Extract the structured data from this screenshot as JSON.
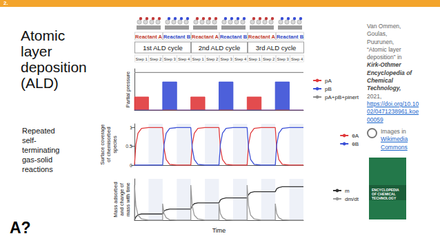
{
  "slide_number": "2.",
  "title_lines": [
    "Atomic",
    "layer",
    "deposition",
    "(ALD)"
  ],
  "subtitle_lines": [
    "Repeated",
    "self-",
    "terminating",
    "gas-solid",
    "reactions"
  ],
  "logo": "A?",
  "citation": [
    {
      "text": "Van Ommen,",
      "style": "plain"
    },
    {
      "text": "Goulas,",
      "style": "plain"
    },
    {
      "text": "Puurunen,",
      "style": "plain"
    },
    {
      "text": "“Atomic layer",
      "style": "plain"
    },
    {
      "text": "deposition” in",
      "style": "plain"
    },
    {
      "text": "Kirk-Othmer",
      "style": "italic"
    },
    {
      "text": "Encyclopedia of",
      "style": "italic"
    },
    {
      "text": "Chemical",
      "style": "italic"
    },
    {
      "text": "Technology,",
      "style": "italic"
    },
    {
      "text": "2021,",
      "style": "plain"
    },
    {
      "text": "https://doi.org/10.10",
      "style": "link"
    },
    {
      "text": "02/0471238961.koe",
      "style": "link"
    },
    {
      "text": "00059",
      "style": "link"
    }
  ],
  "images_credit": [
    {
      "text": "Images in",
      "style": "plain"
    },
    {
      "text": "Wikimedia",
      "style": "link"
    },
    {
      "text": "Commons",
      "style": "link"
    }
  ],
  "book_cover": "ENCYCLOPEDIA OF CHEMICAL TECHNOLOGY",
  "header": {
    "reactants": [
      "Reactant A",
      "Reactant B",
      "Reactant A",
      "Reactant B",
      "Reactant A",
      "Reactant B"
    ],
    "cycles": [
      "1st ALD cycle",
      "2nd ALD cycle",
      "3rd ALD cycle"
    ],
    "steps": [
      "Step 1",
      "Step 2",
      "Step 3",
      "Step 4",
      "Step 1",
      "Step 2",
      "Step 3",
      "Step 4",
      "Step 1",
      "Step 2",
      "Step 3",
      "Step 4"
    ]
  },
  "chart_data": [
    {
      "type": "line",
      "y_label": [
        "Partial pressure"
      ],
      "xlim": [
        0,
        12
      ],
      "ylim": [
        0,
        1.1
      ],
      "tick_labels": false,
      "grid": false,
      "legend": "right",
      "series": [
        {
          "name": "pA",
          "color": "#e0393b",
          "type": "area",
          "x": [
            0,
            0,
            1,
            1,
            4,
            4,
            5,
            5,
            8,
            8,
            9,
            9,
            12
          ],
          "values": [
            0,
            0.35,
            0.35,
            0,
            0,
            0.35,
            0.35,
            0,
            0,
            0.35,
            0.35,
            0,
            0
          ]
        },
        {
          "name": "pB",
          "color": "#3a4fd6",
          "type": "area",
          "x": [
            0,
            2,
            2,
            3,
            3,
            6,
            6,
            7,
            7,
            10,
            10,
            11,
            11,
            12
          ],
          "values": [
            0,
            0,
            0.75,
            0.75,
            0,
            0,
            0.75,
            0.75,
            0,
            0,
            0.75,
            0.75,
            0,
            0
          ]
        },
        {
          "name": "pA+pB+pinert",
          "color": "#8c8c8c",
          "type": "line",
          "x": [
            0,
            12
          ],
          "values": [
            1,
            1
          ]
        }
      ]
    },
    {
      "type": "line",
      "y_label": [
        "Surface coverage",
        "of chemisorbed",
        "species"
      ],
      "xlim": [
        0,
        12
      ],
      "ylim": [
        0,
        1.1
      ],
      "yticks": [
        0,
        0.5,
        1
      ],
      "tick_labels": "y",
      "grid": false,
      "legend": "right",
      "x": [
        0,
        0.1,
        0.25,
        0.5,
        1,
        2,
        2.1,
        2.25,
        2.5,
        3,
        4,
        4.1,
        4.25,
        4.5,
        5,
        6,
        6.1,
        6.25,
        6.5,
        7,
        8,
        8.1,
        8.25,
        8.5,
        9,
        10,
        10.1,
        10.25,
        10.5,
        11,
        12
      ],
      "series": [
        {
          "name": "θA",
          "color": "#e0393b",
          "values": [
            0,
            0.55,
            0.85,
            0.98,
            1,
            1,
            0.45,
            0.15,
            0.02,
            0,
            0,
            0.55,
            0.85,
            0.98,
            1,
            1,
            0.45,
            0.15,
            0.02,
            0,
            0,
            0.55,
            0.85,
            0.98,
            1,
            1,
            0.45,
            0.15,
            0.02,
            0,
            0
          ]
        },
        {
          "name": "θB",
          "color": "#3a4fd6",
          "values": [
            0,
            0,
            0,
            0,
            0,
            0,
            0.55,
            0.85,
            0.98,
            1,
            1,
            0.45,
            0.15,
            0.02,
            0,
            0,
            0.55,
            0.85,
            0.98,
            1,
            1,
            0.45,
            0.15,
            0.02,
            0,
            0,
            0.55,
            0.85,
            0.98,
            1,
            1
          ]
        }
      ]
    },
    {
      "type": "line",
      "x_label": "Time",
      "y_label": [
        "Mass adsorbed",
        "and change of",
        "mass with time"
      ],
      "xlim": [
        0,
        12
      ],
      "ylim": [
        0,
        1
      ],
      "tick_labels": false,
      "grid": false,
      "legend": "right",
      "x": [
        0,
        0.1,
        0.25,
        0.5,
        1,
        2,
        2.1,
        2.25,
        2.5,
        3,
        4,
        4.1,
        4.25,
        4.5,
        5,
        6,
        6.1,
        6.25,
        6.5,
        7,
        8,
        8.1,
        8.25,
        8.5,
        9,
        10,
        10.1,
        10.25,
        10.5,
        11,
        12
      ],
      "series": [
        {
          "name": "m",
          "color": "#333333",
          "values": [
            0,
            0.08,
            0.13,
            0.15,
            0.15,
            0.15,
            0.22,
            0.25,
            0.27,
            0.27,
            0.27,
            0.35,
            0.4,
            0.42,
            0.42,
            0.42,
            0.49,
            0.52,
            0.54,
            0.54,
            0.54,
            0.62,
            0.67,
            0.69,
            0.69,
            0.69,
            0.76,
            0.79,
            0.81,
            0.81,
            0.81
          ]
        },
        {
          "name": "dm/dt",
          "color": "#9a9a9a",
          "x": [
            0,
            0,
            0.1,
            0.25,
            0.5,
            1,
            2,
            2,
            2.1,
            2.25,
            2.5,
            3,
            4,
            4,
            4.1,
            4.25,
            4.5,
            5,
            6,
            6,
            6.1,
            6.25,
            6.5,
            7,
            8,
            8,
            8.1,
            8.25,
            8.5,
            9,
            10,
            10,
            10.1,
            10.25,
            10.5,
            11,
            12
          ],
          "values": [
            0,
            0.85,
            0.35,
            0.12,
            0.03,
            0,
            0,
            0.4,
            0.16,
            0.06,
            0.01,
            0,
            0,
            0.85,
            0.35,
            0.12,
            0.03,
            0,
            0,
            0.4,
            0.16,
            0.06,
            0.01,
            0,
            0,
            0.85,
            0.35,
            0.12,
            0.03,
            0,
            0,
            0.4,
            0.16,
            0.06,
            0.01,
            0,
            0
          ]
        }
      ]
    }
  ]
}
